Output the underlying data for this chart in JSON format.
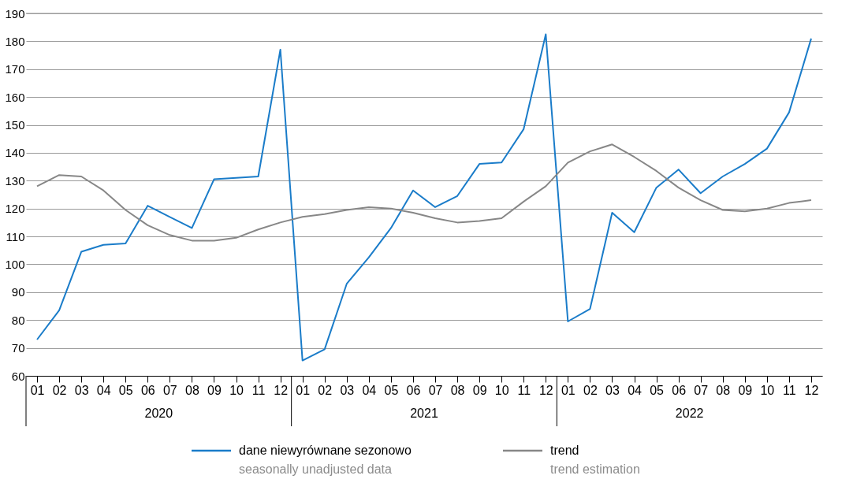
{
  "chart_data": {
    "type": "line",
    "categories": [
      "01",
      "02",
      "03",
      "04",
      "05",
      "06",
      "07",
      "08",
      "09",
      "10",
      "11",
      "12",
      "01",
      "02",
      "03",
      "04",
      "05",
      "06",
      "07",
      "08",
      "09",
      "10",
      "11",
      "12",
      "01",
      "02",
      "03",
      "04",
      "05",
      "06",
      "07",
      "08",
      "09",
      "10",
      "11",
      "12"
    ],
    "series": [
      {
        "name": "dane niewyrównane sezonowo\nseasonally unadjusted data",
        "color": "#1a7cc9",
        "values": [
          73,
          83.5,
          104.5,
          107,
          107.5,
          121,
          117,
          113,
          130.5,
          131,
          131.5,
          177,
          65.5,
          69.5,
          93,
          102.5,
          113,
          126.5,
          120.5,
          124.5,
          136,
          136.5,
          148.5,
          182.5,
          79.5,
          84,
          118.5,
          111.5,
          127.5,
          134,
          125.5,
          131.5,
          136,
          141.5,
          154.5,
          181
        ]
      },
      {
        "name": "trend\ntrend estimation",
        "color": "#878787",
        "values": [
          128,
          132,
          131.5,
          126.5,
          119.5,
          114,
          110.5,
          108.5,
          108.5,
          109.5,
          112.5,
          115,
          117,
          118,
          119.5,
          120.5,
          120,
          118.5,
          116.5,
          115,
          115.5,
          116.5,
          122.5,
          128,
          136.5,
          140.5,
          143,
          138.5,
          133.5,
          127.5,
          123,
          119.5,
          119,
          120,
          122,
          123
        ]
      }
    ],
    "ylim": [
      60,
      190
    ],
    "yticks": [
      60,
      70,
      80,
      90,
      100,
      110,
      120,
      130,
      140,
      150,
      160,
      170,
      180,
      190
    ],
    "grid": "y",
    "legend": "bottom",
    "marker": "none",
    "line_style": "solid",
    "annotations": [
      "2020",
      "2021",
      "2022"
    ]
  }
}
